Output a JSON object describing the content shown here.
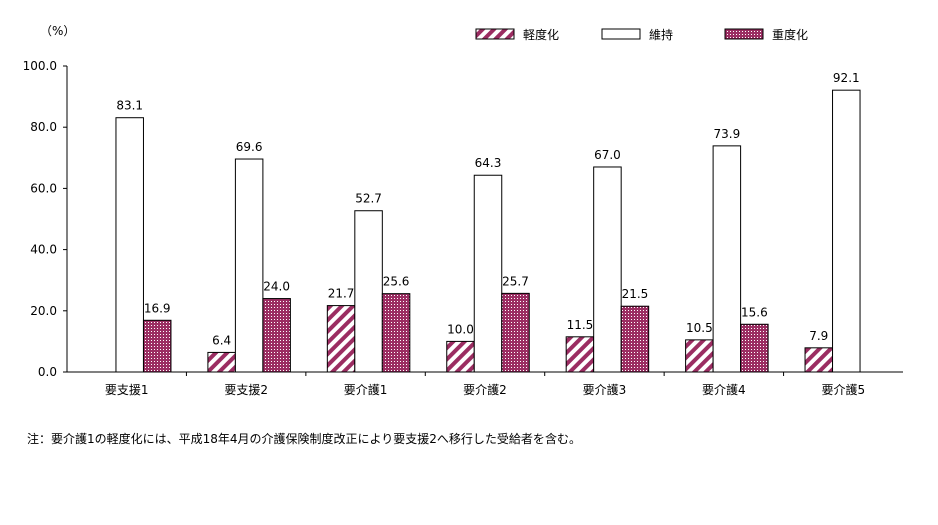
{
  "chart_data": {
    "type": "bar",
    "ylabel": "（%）",
    "ylim": [
      0,
      100
    ],
    "yticks": [
      "0.0",
      "20.0",
      "40.0",
      "60.0",
      "80.0",
      "100.0"
    ],
    "grid": false,
    "legend_position": "top-right",
    "categories": [
      "要支援1",
      "要支援2",
      "要介護1",
      "要介護2",
      "要介護3",
      "要介護4",
      "要介護5"
    ],
    "series": [
      {
        "name": "軽度化",
        "color": "#9b2d62",
        "pattern": "diagonal-hatch",
        "values": [
          null,
          6.4,
          21.7,
          10.0,
          11.5,
          10.5,
          7.9
        ]
      },
      {
        "name": "維持",
        "color": "#ffffff",
        "pattern": "solid",
        "values": [
          83.1,
          69.6,
          52.7,
          64.3,
          67.0,
          73.9,
          92.1
        ]
      },
      {
        "name": "重度化",
        "color": "#9b2d62",
        "pattern": "dots",
        "values": [
          16.9,
          24.0,
          25.6,
          25.7,
          21.5,
          15.6,
          null
        ]
      }
    ]
  },
  "note": "注：要介護1の軽度化には、平成18年4月の介護保険制度改正により要支援2へ移行した受給者を含む。"
}
